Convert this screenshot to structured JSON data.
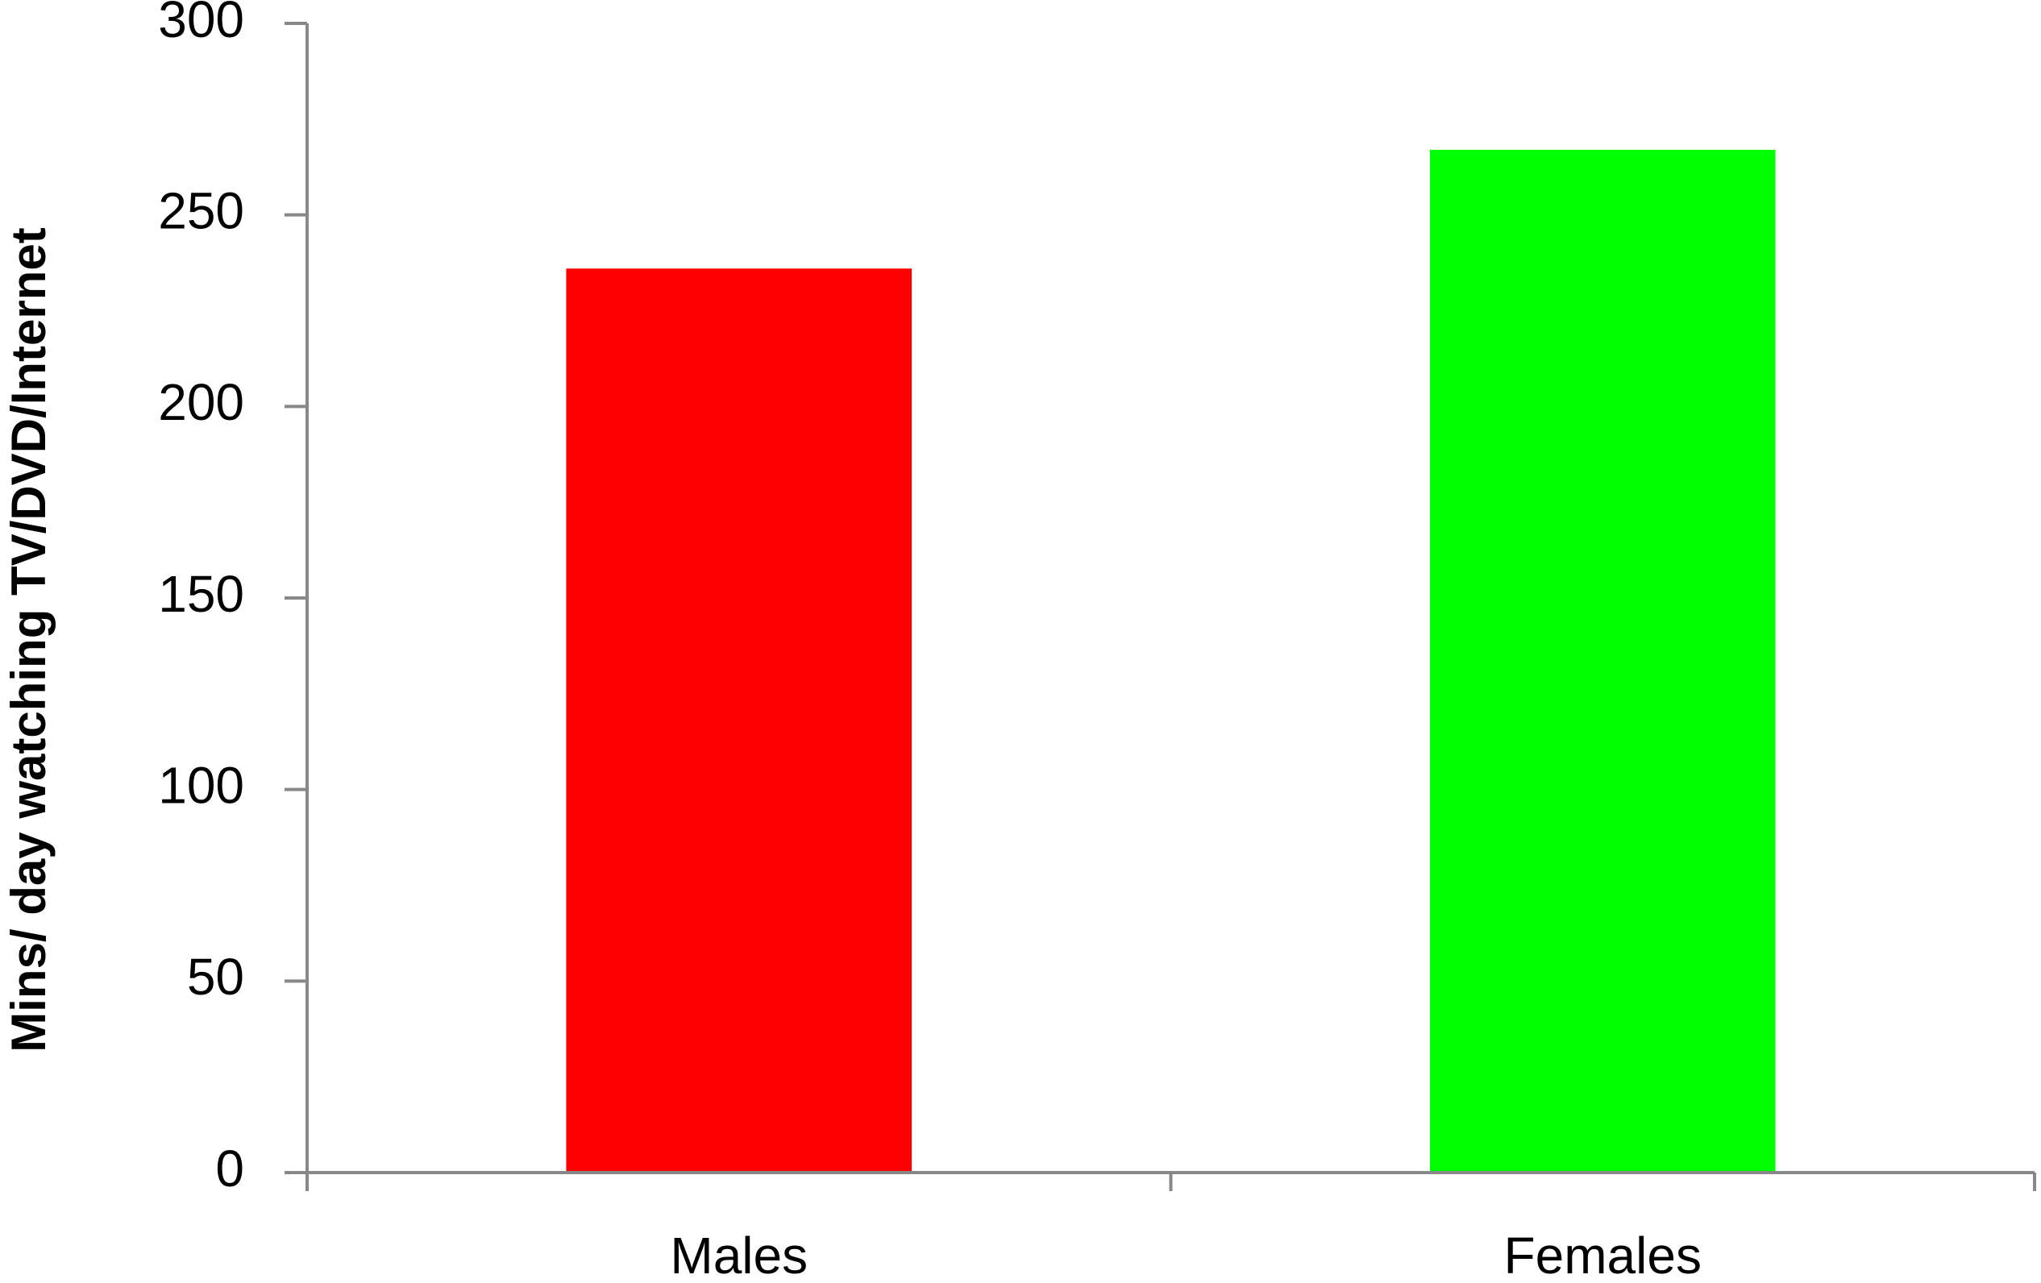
{
  "chart_data": {
    "type": "bar",
    "y_label": "Mins/ day watching TV/DVD/Internet",
    "categories": [
      "Males",
      "Females"
    ],
    "values": [
      236,
      267
    ],
    "colors": [
      "#ff0000",
      "#00ff00"
    ],
    "ylim": [
      0,
      300
    ],
    "yticks": [
      0,
      50,
      100,
      150,
      200,
      250,
      300
    ],
    "grid": false
  }
}
